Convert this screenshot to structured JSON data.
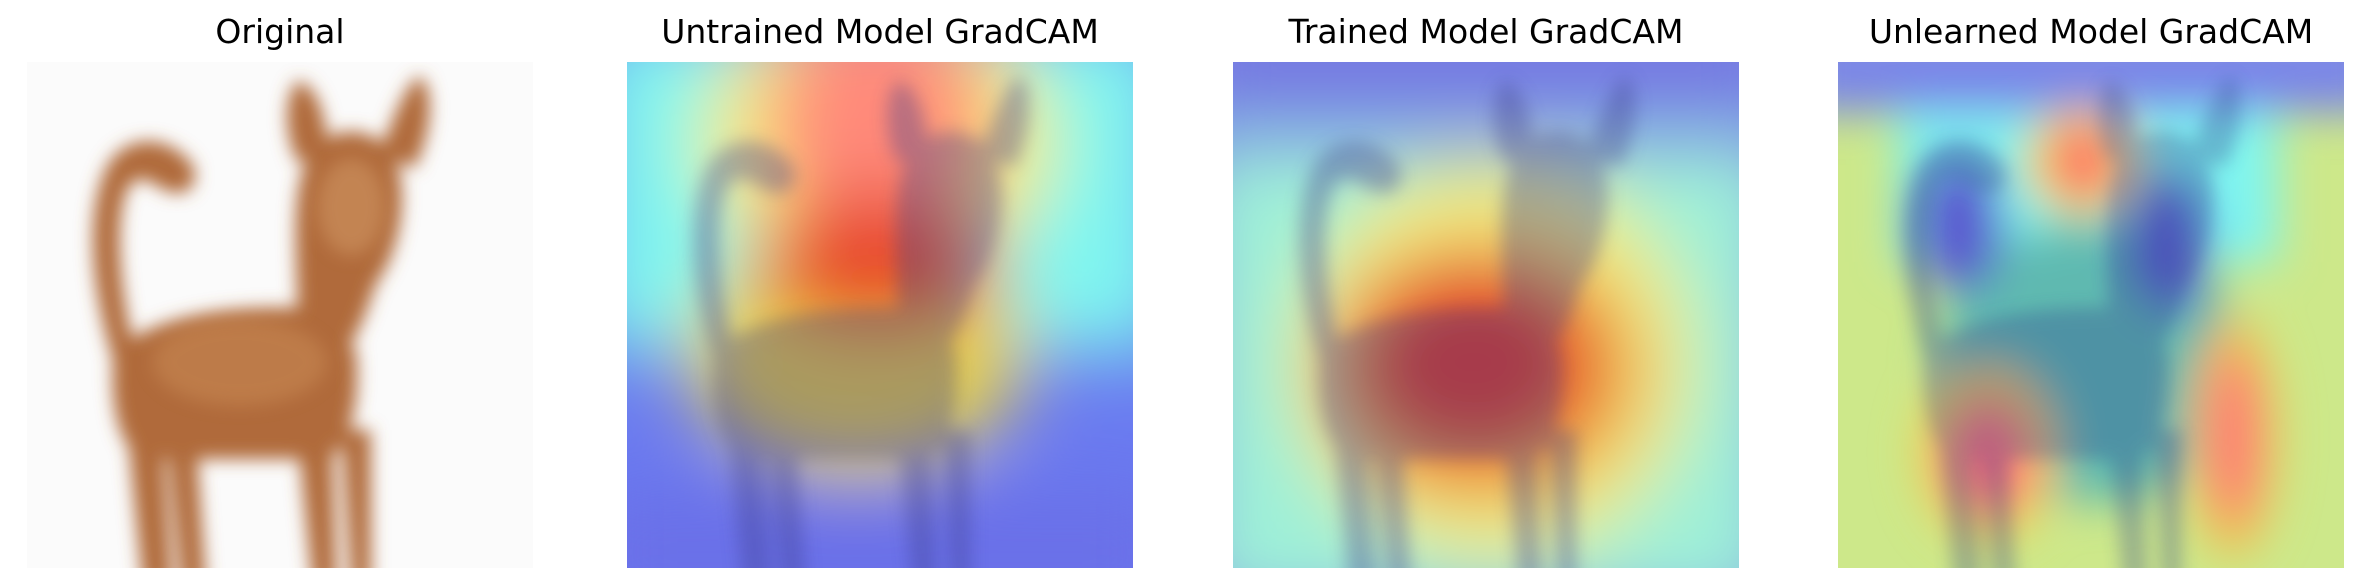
{
  "panels": [
    {
      "title": "Original"
    },
    {
      "title": "Untrained Model GradCAM"
    },
    {
      "title": "Trained Model GradCAM"
    },
    {
      "title": "Unlearned Model GradCAM"
    }
  ]
}
